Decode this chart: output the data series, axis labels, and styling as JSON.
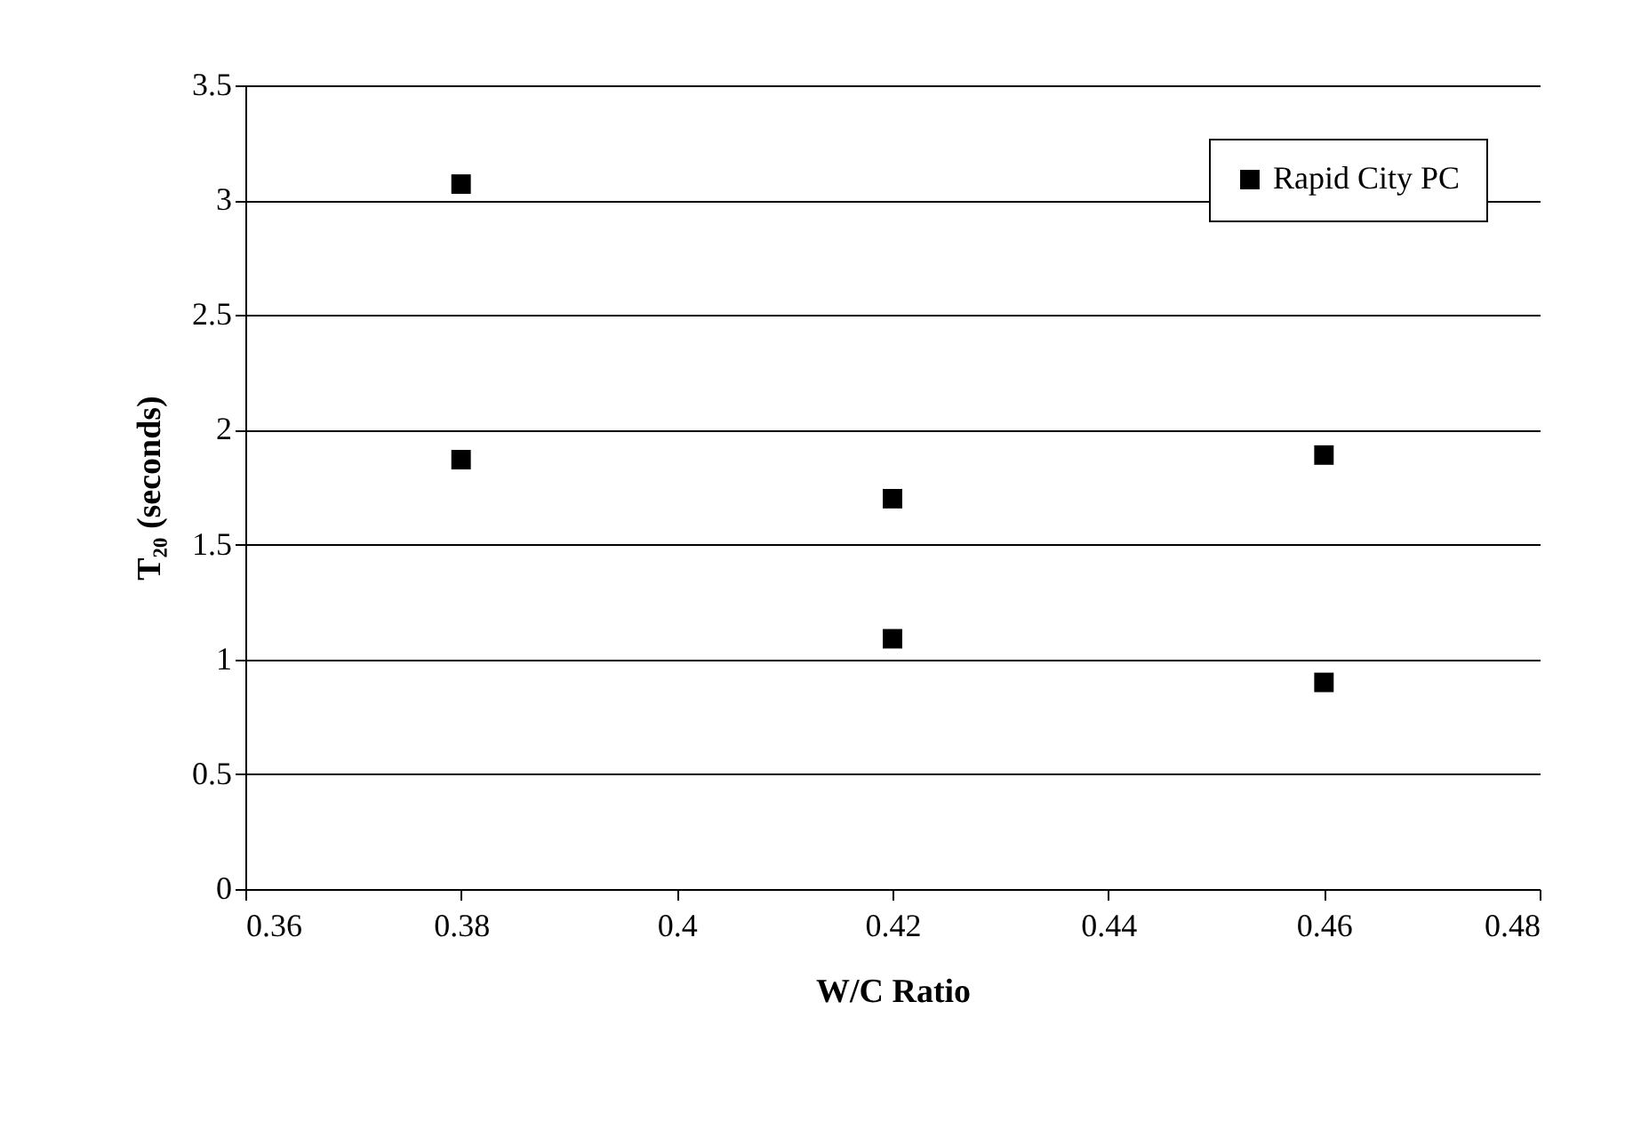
{
  "chart_data": {
    "type": "scatter",
    "xlabel": "W/C Ratio",
    "ylabel": "T₂₀ (seconds)",
    "series": [
      {
        "name": "Rapid City PC",
        "color": "#000000",
        "x": [
          0.38,
          0.38,
          0.42,
          0.42,
          0.46,
          0.46
        ],
        "values": [
          3.07,
          1.87,
          1.7,
          1.09,
          1.89,
          0.9
        ]
      }
    ],
    "xlim": [
      0.36,
      0.48
    ],
    "xticks": [
      0.36,
      0.38,
      0.4,
      0.42,
      0.44,
      0.46,
      0.48
    ],
    "ylim": [
      0,
      3.5
    ],
    "yticks": [
      0,
      0.5,
      1,
      1.5,
      2,
      2.5,
      3,
      3.5
    ],
    "grid": "y",
    "legend": "top right",
    "marker": "square"
  }
}
